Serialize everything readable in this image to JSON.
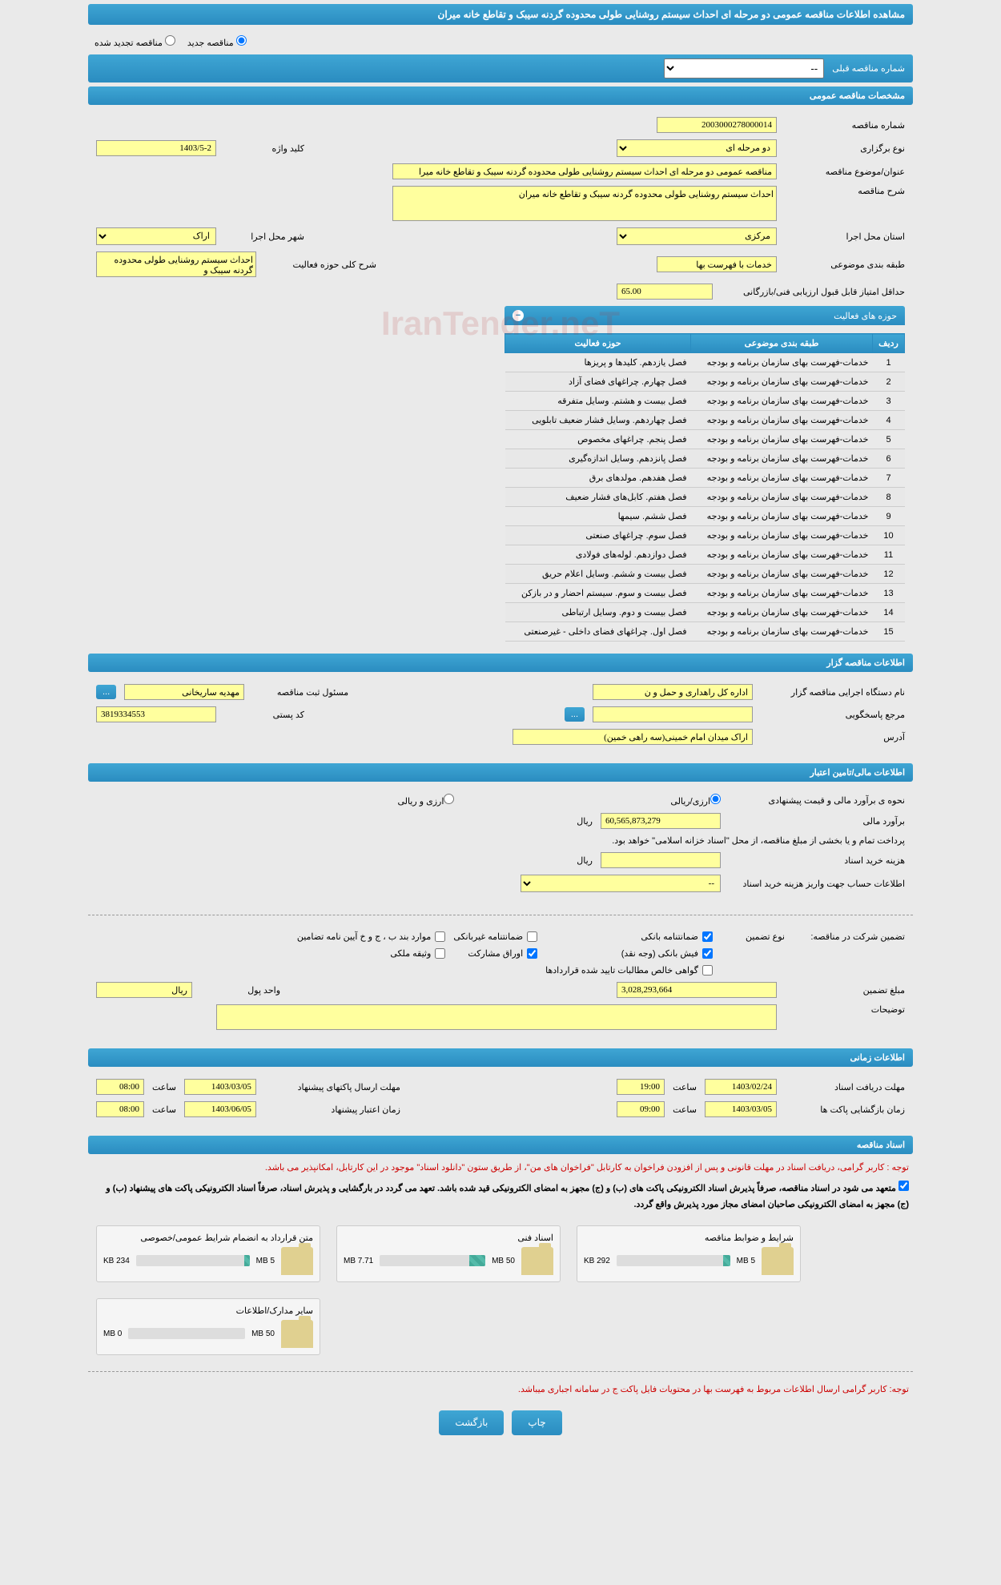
{
  "title": "مشاهده اطلاعات مناقصه عمومی دو مرحله ای احداث سیستم روشنایی طولی محدوده گردنه سیبک و تقاطع خانه میران",
  "radios": {
    "new": "مناقصه جدید",
    "renewed": "مناقصه تجدید شده"
  },
  "prev_tender": {
    "label": "شماره مناقصه قبلی",
    "value": "--"
  },
  "sections": {
    "general": "مشخصات مناقصه عمومی",
    "organizer": "اطلاعات مناقصه گزار",
    "financial": "اطلاعات مالی/تامین اعتبار",
    "timing": "اطلاعات زمانی",
    "documents": "اسناد مناقصه"
  },
  "general": {
    "number_label": "شماره مناقصه",
    "number": "2003000278000014",
    "type_label": "نوع برگزاری",
    "type": "دو مرحله ای",
    "keyword_label": "کلید واژه",
    "keyword": "1403/5-2",
    "subject_label": "عنوان/موضوع مناقصه",
    "subject": "مناقصه عمومی دو مرحله ای احداث سیستم روشنایی طولی محدوده گردنه سیبک و تقاطع خانه میرا",
    "desc_label": "شرح مناقصه",
    "desc": "احداث سیستم روشنایی طولی محدوده گردنه سیبک و تقاطع خانه میران",
    "province_label": "استان محل اجرا",
    "province": "مرکزی",
    "city_label": "شهر محل اجرا",
    "city": "اراک",
    "category_label": "طبقه بندی موضوعی",
    "category": "خدمات با فهرست بها",
    "activity_desc_label": "شرح کلی حوزه فعالیت",
    "activity_desc": "احداث سیستم روشنایی طولی محدوده گردنه سیبک و",
    "min_score_label": "حداقل امتیاز قابل قبول ارزیابی فنی/بازرگانی",
    "min_score": "65.00"
  },
  "activity_table": {
    "title": "حوزه های فعالیت",
    "cols": {
      "row": "ردیف",
      "category": "طبقه بندی موضوعی",
      "area": "حوزه فعالیت"
    },
    "rows": [
      {
        "n": "1",
        "cat": "خدمات-فهرست بهای سازمان برنامه و بودجه",
        "area": "فصل یازدهم. کلیدها و پریزها"
      },
      {
        "n": "2",
        "cat": "خدمات-فهرست بهای سازمان برنامه و بودجه",
        "area": "فصل چهارم. چراغهای فضای آزاد"
      },
      {
        "n": "3",
        "cat": "خدمات-فهرست بهای سازمان برنامه و بودجه",
        "area": "فصل بیست و هشتم. وسایل متفرقه"
      },
      {
        "n": "4",
        "cat": "خدمات-فهرست بهای سازمان برنامه و بودجه",
        "area": "فصل چهاردهم. وسایل فشار ضعیف تابلویی"
      },
      {
        "n": "5",
        "cat": "خدمات-فهرست بهای سازمان برنامه و بودجه",
        "area": "فصل پنجم. چراغهای مخصوص"
      },
      {
        "n": "6",
        "cat": "خدمات-فهرست بهای سازمان برنامه و بودجه",
        "area": "فصل پانزدهم. وسایل اندازه‌گیری"
      },
      {
        "n": "7",
        "cat": "خدمات-فهرست بهای سازمان برنامه و بودجه",
        "area": "فصل هفدهم. مولدهای برق"
      },
      {
        "n": "8",
        "cat": "خدمات-فهرست بهای سازمان برنامه و بودجه",
        "area": "فصل هفتم. کابل‌های فشار ضعیف"
      },
      {
        "n": "9",
        "cat": "خدمات-فهرست بهای سازمان برنامه و بودجه",
        "area": "فصل ششم. سیمها"
      },
      {
        "n": "10",
        "cat": "خدمات-فهرست بهای سازمان برنامه و بودجه",
        "area": "فصل سوم. چراغهای صنعتی"
      },
      {
        "n": "11",
        "cat": "خدمات-فهرست بهای سازمان برنامه و بودجه",
        "area": "فصل دوازدهم. لوله‌های فولادی"
      },
      {
        "n": "12",
        "cat": "خدمات-فهرست بهای سازمان برنامه و بودجه",
        "area": "فصل بیست و ششم. وسایل اعلام حریق"
      },
      {
        "n": "13",
        "cat": "خدمات-فهرست بهای سازمان برنامه و بودجه",
        "area": "فصل بیست و سوم. سیستم احضار و در بازکن"
      },
      {
        "n": "14",
        "cat": "خدمات-فهرست بهای سازمان برنامه و بودجه",
        "area": "فصل بیست و دوم. وسایل ارتباطی"
      },
      {
        "n": "15",
        "cat": "خدمات-فهرست بهای سازمان برنامه و بودجه",
        "area": "فصل اول. چراغهای فضای داخلی - غیرصنعتی"
      }
    ]
  },
  "organizer": {
    "exec_label": "نام دستگاه اجرایی مناقصه گزار",
    "exec": "اداره کل راهداری و حمل و ن",
    "reg_label": "مسئول ثبت مناقصه",
    "reg": "مهدیه ساریخانی",
    "btn": "...",
    "response_label": "مرجع پاسخگویی",
    "response": "",
    "postal_label": "کد پستی",
    "postal": "3819334553",
    "address_label": "آدرس",
    "address": "اراک میدان امام خمینی(سه راهی خمین)"
  },
  "financial": {
    "method_label": "نحوه ی برآورد مالی و قیمت پیشنهادی",
    "method_fx": "ارزی/ریالی",
    "method_rial": "ارزی و ریالی",
    "estimate_label": "برآورد مالی",
    "estimate": "60,565,873,279",
    "unit": "ریال",
    "note": "پرداخت تمام و یا بخشی از مبلغ مناقصه، از محل \"اسناد خزانه اسلامی\" خواهد بود.",
    "doc_cost_label": "هزینه خرید اسناد",
    "doc_cost": "",
    "account_label": "اطلاعات حساب جهت واریز هزینه خرید اسناد",
    "account": "--"
  },
  "guarantee": {
    "title": "تضمین شرکت در مناقصه:",
    "type_label": "نوع تضمین",
    "opts": {
      "bank": "ضمانتنامه بانکی",
      "nonbank": "ضمانتنامه غیربانکی",
      "bonds": "موارد بند ب ، ج و خ آیین نامه تضامین",
      "cash": "فیش بانکی (وجه نقد)",
      "securities": "اوراق مشارکت",
      "property": "وثیقه ملکی",
      "certified": "گواهی خالص مطالبات تایید شده قراردادها"
    },
    "amount_label": "مبلغ تضمین",
    "amount": "3,028,293,664",
    "currency_label": "واحد پول",
    "currency": "ریال",
    "notes_label": "توضیحات",
    "notes": ""
  },
  "timing": {
    "receive_label": "مهلت دریافت اسناد",
    "receive_date": "1403/02/24",
    "receive_time": "19:00",
    "send_label": "مهلت ارسال پاکتهای پیشنهاد",
    "send_date": "1403/03/05",
    "send_time": "08:00",
    "open_label": "زمان بازگشایی پاکت ها",
    "open_date": "1403/03/05",
    "open_time": "09:00",
    "valid_label": "زمان اعتبار پیشنهاد",
    "valid_date": "1403/06/05",
    "valid_time": "08:00",
    "time_label": "ساعت"
  },
  "docs": {
    "warn1": "توجه : کاربر گرامی، دریافت اسناد در مهلت قانونی و پس از افزودن فراخوان به کارتابل \"فراخوان های من\"، از طریق ستون \"دانلود اسناد\" موجود در این کارتابل، امکانپذیر می باشد.",
    "warn2": "متعهد می شود در اسناد مناقصه، صرفاً پذیرش اسناد الکترونیکی پاکت های (ب) و (ج) مجهز به امضای الکترونیکی قید شده باشد. تعهد می گردد در بارگشایی و پذیرش اسناد، صرفاً اسناد الکترونیکی پاکت های پیشنهاد (ب) و (ج) مجهز به امضای الکترونیکی صاحبان امضای مجاز مورد پذیرش واقع گردد.",
    "files": [
      {
        "title": "شرایط و ضوابط مناقصه",
        "used": "292 KB",
        "total": "5 MB",
        "pct": 6
      },
      {
        "title": "اسناد فنی",
        "used": "7.71 MB",
        "total": "50 MB",
        "pct": 15
      },
      {
        "title": "متن قرارداد به انضمام شرایط عمومی/خصوصی",
        "used": "234 KB",
        "total": "5 MB",
        "pct": 5
      },
      {
        "title": "سایر مدارک/اطلاعات",
        "used": "0 MB",
        "total": "50 MB",
        "pct": 0
      }
    ],
    "bottom_warn": "توجه: کاربر گرامی ارسال اطلاعات مربوط به فهرست بها در محتویات فایل پاکت ج در سامانه اجباری میباشد."
  },
  "buttons": {
    "print": "چاپ",
    "back": "بازگشت"
  },
  "watermark": "IranTender.neT"
}
